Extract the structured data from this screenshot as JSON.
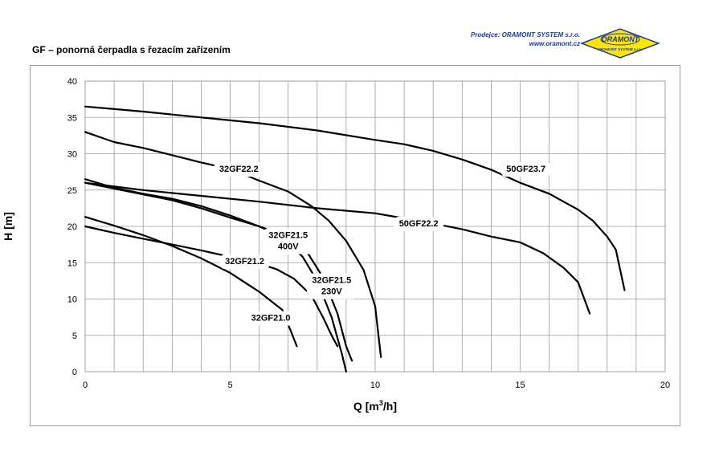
{
  "header": {
    "title": "GF – ponorná čerpadla s řezacím zařízením",
    "dealer_label": "Prodejce:",
    "dealer_name": "ORAMONT SYSTEM s.r.o.",
    "dealer_url": "www.oramont.cz",
    "logo_text": "ORAMONT",
    "logo_sub": "ORAMONT SYSTEM s.r.o."
  },
  "colors": {
    "curve": "#000000",
    "grid": "#9a9a9a",
    "logo_fill": "#ffe600",
    "dealer_text": "#1a3a9a"
  },
  "chart_data": {
    "type": "line",
    "title": "",
    "xlabel": "Q [m3/h]",
    "xlabel_main": "Q [m",
    "xlabel_sup": "3",
    "xlabel_tail": "/h]",
    "ylabel": "H [m]",
    "xlim": [
      0,
      20
    ],
    "ylim": [
      0,
      40
    ],
    "xticks": [
      0,
      5,
      10,
      15,
      20
    ],
    "yticks": [
      0,
      5,
      10,
      15,
      20,
      25,
      30,
      35,
      40
    ],
    "grid": true,
    "series": [
      {
        "name": "50GF23.7",
        "label_lines": [
          "50GF23.7"
        ],
        "label_at": [
          15.2,
          27.5
        ],
        "points": [
          [
            0,
            36.5
          ],
          [
            2,
            35.8
          ],
          [
            4,
            35
          ],
          [
            6,
            34.2
          ],
          [
            8,
            33.2
          ],
          [
            10,
            31.9
          ],
          [
            11,
            31.3
          ],
          [
            12,
            30.4
          ],
          [
            13,
            29.2
          ],
          [
            14,
            27.8
          ],
          [
            15,
            26
          ],
          [
            16,
            24.5
          ],
          [
            17,
            22.3
          ],
          [
            17.5,
            20.8
          ],
          [
            18,
            18.6
          ],
          [
            18.3,
            16.8
          ],
          [
            18.6,
            11.2
          ]
        ]
      },
      {
        "name": "50GF22.2",
        "label_lines": [
          "50GF22.2"
        ],
        "label_at": [
          11.5,
          20
        ],
        "points": [
          [
            0,
            26
          ],
          [
            2,
            25
          ],
          [
            4,
            24.2
          ],
          [
            6,
            23.4
          ],
          [
            8,
            22.5
          ],
          [
            10,
            21.8
          ],
          [
            11,
            21.1
          ],
          [
            12,
            20.4
          ],
          [
            13,
            19.6
          ],
          [
            14,
            18.6
          ],
          [
            15,
            17.8
          ],
          [
            15.8,
            16.3
          ],
          [
            16.5,
            14.3
          ],
          [
            17,
            12.3
          ],
          [
            17.4,
            8
          ]
        ]
      },
      {
        "name": "32GF22.2",
        "label_lines": [
          "32GF22.2"
        ],
        "label_at": [
          5.3,
          27.5
        ],
        "points": [
          [
            0,
            33
          ],
          [
            1,
            31.6
          ],
          [
            2,
            30.8
          ],
          [
            3,
            29.8
          ],
          [
            4,
            28.8
          ],
          [
            5,
            27.9
          ],
          [
            6,
            26.3
          ],
          [
            7,
            24.8
          ],
          [
            7.8,
            22.8
          ],
          [
            8.4,
            20.8
          ],
          [
            9,
            18
          ],
          [
            9.6,
            14
          ],
          [
            10,
            9
          ],
          [
            10.2,
            2
          ]
        ]
      },
      {
        "name": "32GF21.5 400V",
        "label_lines": [
          "32GF21.5",
          "400V"
        ],
        "label_at": [
          7.0,
          18.4
        ],
        "points": [
          [
            0,
            26.5
          ],
          [
            1,
            25.3
          ],
          [
            2,
            24.5
          ],
          [
            3,
            23.8
          ],
          [
            4,
            22.8
          ],
          [
            5,
            21.5
          ],
          [
            6,
            20
          ],
          [
            7,
            18.6
          ],
          [
            7.6,
            16.8
          ],
          [
            8.2,
            13
          ],
          [
            8.7,
            8
          ],
          [
            9,
            3.5
          ],
          [
            9.2,
            1.5
          ]
        ]
      },
      {
        "name": "32GF21.5 230V",
        "label_lines": [
          "32GF21.5",
          "230V"
        ],
        "label_at": [
          8.5,
          12.2
        ],
        "points": [
          [
            0,
            26
          ],
          [
            1,
            25.2
          ],
          [
            2,
            24.4
          ],
          [
            3,
            23.6
          ],
          [
            4,
            22.5
          ],
          [
            5,
            21.2
          ],
          [
            6,
            20
          ],
          [
            6.8,
            18.5
          ],
          [
            7.5,
            15.8
          ],
          [
            8,
            12.5
          ],
          [
            8.5,
            7.5
          ],
          [
            8.85,
            2.5
          ],
          [
            9,
            0
          ]
        ]
      },
      {
        "name": "32GF21.2",
        "label_lines": [
          "32GF21.2"
        ],
        "label_at": [
          5.5,
          14.8
        ],
        "points": [
          [
            0,
            20
          ],
          [
            1,
            19.1
          ],
          [
            2,
            18.3
          ],
          [
            3,
            17.5
          ],
          [
            4,
            16.7
          ],
          [
            5,
            15.8
          ],
          [
            6,
            14.9
          ],
          [
            6.6,
            14.1
          ],
          [
            7.2,
            12.8
          ],
          [
            7.8,
            10.5
          ],
          [
            8.2,
            7.5
          ],
          [
            8.5,
            5
          ],
          [
            8.7,
            3.5
          ]
        ]
      },
      {
        "name": "32GF21.0",
        "label_lines": [
          "32GF21.0"
        ],
        "label_at": [
          6.4,
          7.0
        ],
        "points": [
          [
            0,
            21.3
          ],
          [
            1,
            20.1
          ],
          [
            2,
            18.8
          ],
          [
            3,
            17.3
          ],
          [
            4,
            15.6
          ],
          [
            5,
            13.6
          ],
          [
            6,
            11
          ],
          [
            6.8,
            8.5
          ],
          [
            7.1,
            5.5
          ],
          [
            7.3,
            3.5
          ]
        ]
      }
    ]
  }
}
